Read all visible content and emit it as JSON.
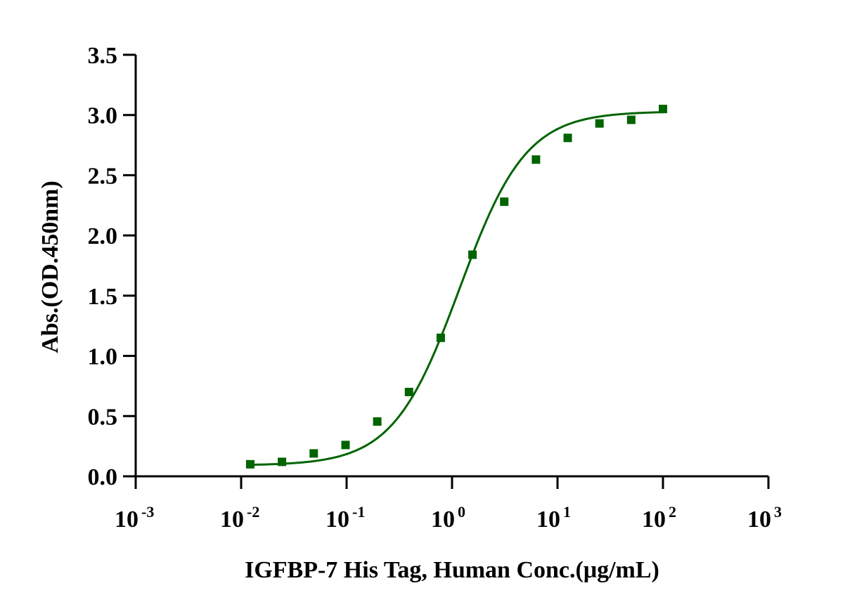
{
  "chart_data": {
    "type": "scatter",
    "title": "",
    "xlabel": "IGFBP-7 His Tag, Human Conc.(μg/mL)",
    "ylabel": "Abs.(OD.450nm)",
    "xscale": "log10",
    "xlim": [
      0.001,
      1000
    ],
    "ylim": [
      0,
      3.5
    ],
    "x_ticks": [
      {
        "base": "10",
        "exp": "-3",
        "value": 0.001
      },
      {
        "base": "10",
        "exp": "-2",
        "value": 0.01
      },
      {
        "base": "10",
        "exp": "-1",
        "value": 0.1
      },
      {
        "base": "10",
        "exp": "0",
        "value": 1
      },
      {
        "base": "10",
        "exp": "1",
        "value": 10
      },
      {
        "base": "10",
        "exp": "2",
        "value": 100
      },
      {
        "base": "10",
        "exp": "3",
        "value": 1000
      }
    ],
    "y_ticks": [
      "0.0",
      "0.5",
      "1.0",
      "1.5",
      "2.0",
      "2.5",
      "3.0",
      "3.5"
    ],
    "grid": false,
    "series": [
      {
        "name": "IGFBP-7 His Tag, Human",
        "color": "#006400",
        "marker": "square",
        "x": [
          0.0122,
          0.0244,
          0.0488,
          0.0977,
          0.1953,
          0.3906,
          0.7813,
          1.5625,
          3.125,
          6.25,
          12.5,
          25,
          50,
          100
        ],
        "y": [
          0.1,
          0.12,
          0.19,
          0.26,
          0.455,
          0.7,
          1.15,
          1.84,
          2.28,
          2.63,
          2.81,
          2.93,
          2.96,
          3.05
        ],
        "fit": {
          "model": "4PL",
          "bottom": 0.09,
          "top": 3.03,
          "ec50": 1.18,
          "hill": 1.38
        }
      }
    ]
  }
}
